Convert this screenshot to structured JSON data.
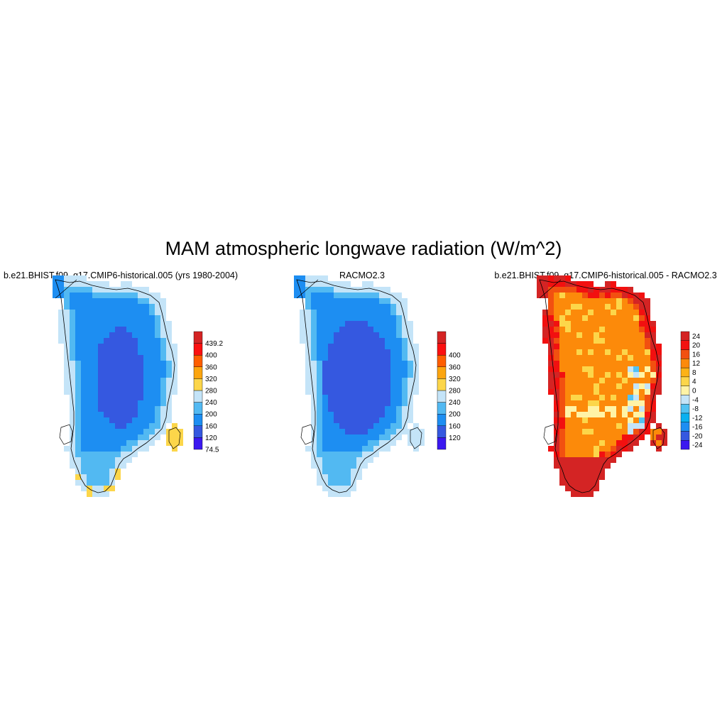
{
  "title": "MAM atmospheric longwave radiation (W/m^2)",
  "colors": {
    "abs_palette": [
      "#3b18f0",
      "#3558e0",
      "#1d8ef2",
      "#52b9f2",
      "#c4e4f8",
      "#fcd64a",
      "#fca50f",
      "#ff5e00",
      "#fb1010",
      "#d42424"
    ],
    "diff_palette": [
      "#3b18f0",
      "#3558e0",
      "#1d8ef2",
      "#0ab0f0",
      "#52c2f2",
      "#c4e4f8",
      "#fff3a6",
      "#fcd64a",
      "#fcb216",
      "#fc8a0a",
      "#f25010",
      "#f21010",
      "#d42424"
    ]
  },
  "panels": [
    {
      "title": "b.e21.BHIST.f09_g17.CMIP6-historical.005 (yrs 1980-2004)",
      "colorbar_labels": [
        "74.5",
        "120",
        "160",
        "200",
        "240",
        "280",
        "320",
        "360",
        "400",
        "439.2"
      ],
      "ice_sheet_mean_class": 2
    },
    {
      "title": "RACMO2.3",
      "colorbar_labels": [
        "120",
        "160",
        "200",
        "240",
        "280",
        "320",
        "360",
        "400"
      ],
      "ice_sheet_mean_class": 2
    },
    {
      "title": "b.e21.BHIST.f09_g17.CMIP6-historical.005 - RACMO2.3",
      "colorbar_labels": [
        "-24",
        "-20",
        "-16",
        "-12",
        "-8",
        "-4",
        "0",
        "4",
        "8",
        "12",
        "16",
        "20",
        "24"
      ],
      "ice_sheet_mean_class": 8
    }
  ]
}
